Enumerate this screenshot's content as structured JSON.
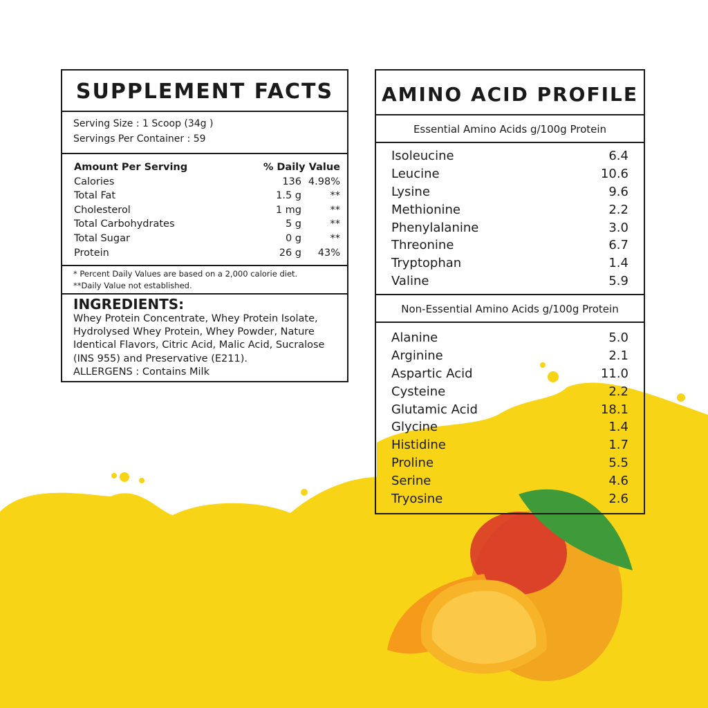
{
  "supplement_facts": {
    "title": "SUPPLEMENT FACTS",
    "serving_size": "Serving Size : 1 Scoop (34g )",
    "servings_per_container": "Servings Per Container : 59",
    "header_left": "Amount Per Serving",
    "header_right": "% Daily Value",
    "rows": [
      {
        "name": "Calories",
        "amount": "136",
        "dv": "4.98%"
      },
      {
        "name": "Total Fat",
        "amount": "1.5 g",
        "dv": "**"
      },
      {
        "name": "Cholesterol",
        "amount": "1 mg",
        "dv": "**"
      },
      {
        "name": "Total Carbohydrates",
        "amount": "5 g",
        "dv": "**"
      },
      {
        "name": "Total Sugar",
        "amount": "0 g",
        "dv": "**"
      },
      {
        "name": "Protein",
        "amount": "26 g",
        "dv": "43%"
      }
    ],
    "footnote_1": "* Percent Daily Values are based on a 2,000 calorie diet.",
    "footnote_2": "**Daily Value not established.",
    "ingredients_heading": "INGREDIENTS:",
    "ingredients_text": "Whey Protein Concentrate, Whey Protein Isolate, Hydrolysed Whey Protein, Whey Powder, Nature Identical Flavors, Citric Acid, Malic Acid, Sucralose (INS 955) and  Preservative (E211).",
    "allergens": "ALLERGENS : Contains Milk"
  },
  "amino_profile": {
    "title": "AMINO ACID PROFILE",
    "essential_heading": "Essential Amino Acids g/100g Protein",
    "essential": [
      {
        "name": "Isoleucine",
        "value": "6.4"
      },
      {
        "name": "Leucine",
        "value": "10.6"
      },
      {
        "name": "Lysine",
        "value": "9.6"
      },
      {
        "name": "Methionine",
        "value": "2.2"
      },
      {
        "name": "Phenylalanine",
        "value": "3.0"
      },
      {
        "name": "Threonine",
        "value": "6.7"
      },
      {
        "name": "Tryptophan",
        "value": "1.4"
      },
      {
        "name": "Valine",
        "value": "5.9"
      }
    ],
    "non_essential_heading": "Non-Essential Amino Acids g/100g Protein",
    "non_essential": [
      {
        "name": "Alanine",
        "value": "5.0"
      },
      {
        "name": "Arginine",
        "value": "2.1"
      },
      {
        "name": "Aspartic Acid",
        "value": "11.0"
      },
      {
        "name": "Cysteine",
        "value": "2.2"
      },
      {
        "name": "Glutamic Acid",
        "value": "18.1"
      },
      {
        "name": "Glycine",
        "value": "1.4"
      },
      {
        "name": "Histidine",
        "value": "1.7"
      },
      {
        "name": "Proline",
        "value": "5.5"
      },
      {
        "name": "Serine",
        "value": "4.6"
      },
      {
        "name": "Tryosine",
        "value": "2.6"
      }
    ]
  },
  "colors": {
    "yellow": "#f8d417",
    "text": "#1a1a1a"
  }
}
